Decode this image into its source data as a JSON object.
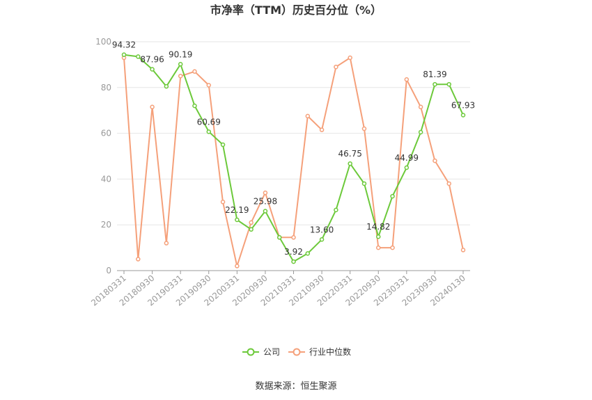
{
  "chart_data": {
    "type": "line",
    "title": "市净率（TTM）历史百分位（%）",
    "source": "数据来源：恒生聚源",
    "ylim": [
      0,
      100
    ],
    "yticks": [
      "0",
      "20",
      "40",
      "60",
      "80",
      "100"
    ],
    "xtick_labels": [
      "20180331",
      "20180930",
      "20190331",
      "20190930",
      "20200331",
      "20200930",
      "20210331",
      "20210930",
      "20220331",
      "20220930",
      "20230331",
      "20230930",
      "20240130"
    ],
    "xtick_positions": [
      0,
      2,
      4,
      6,
      8,
      10,
      12,
      14,
      16,
      18,
      20,
      22,
      24
    ],
    "grid": true,
    "legend_position": "bottom",
    "series": [
      {
        "name": "公司",
        "color": "#6cc93a",
        "values": [
          94.32,
          93.5,
          87.96,
          80.5,
          90.19,
          72.0,
          60.69,
          55.0,
          22.19,
          18.0,
          25.98,
          14.5,
          3.92,
          7.5,
          13.6,
          26.5,
          46.75,
          38.0,
          14.82,
          32.5,
          44.99,
          60.5,
          81.39,
          81.4,
          67.93
        ],
        "labels": {
          "0": "94.32",
          "2": "87.96",
          "4": "90.19",
          "6": "60.69",
          "8": "22.19",
          "10": "25.98",
          "12": "3.92",
          "14": "13.60",
          "16": "46.75",
          "18": "14.82",
          "20": "44.99",
          "22": "81.39",
          "24": "67.93"
        }
      },
      {
        "name": "行业中位数",
        "color": "#f5a07a",
        "values": [
          93.0,
          5.0,
          71.5,
          12.0,
          85.0,
          87.0,
          81.0,
          30.0,
          2.0,
          21.0,
          34.0,
          14.5,
          14.5,
          67.5,
          61.5,
          89.0,
          93.0,
          62.0,
          10.0,
          10.0,
          83.5,
          71.5,
          48.0,
          38.0,
          9.0
        ]
      }
    ]
  }
}
